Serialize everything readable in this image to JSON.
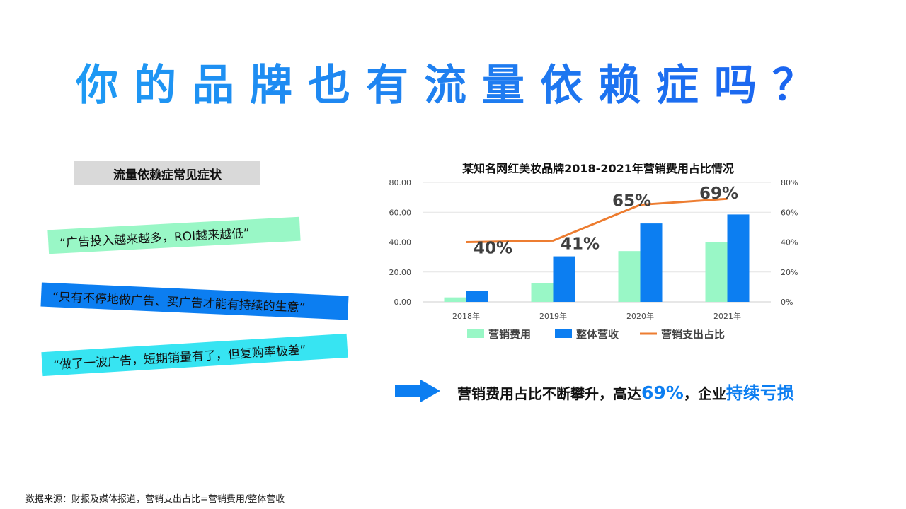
{
  "title": "你的品牌也有流量依赖症吗？",
  "symptoms": {
    "header": "流量依赖症常见症状",
    "quotes": [
      "“广告投入越来越多，ROI越来越低”",
      "“只有不停地做广告、买广告才能有持续的生意”",
      "“做了一波广告，短期销量有了，但复购率极差”"
    ]
  },
  "conclusion": {
    "prefix": "营销费用占比不断攀升，高达",
    "value": "69%",
    "middle": "，企业",
    "emphasis": "持续亏损"
  },
  "source": "数据来源：财报及媒体报道，营销支出占比=营销费用/整体营收",
  "colors": {
    "accent": "#0c7ef1",
    "marketing_cost_bar": "#99f7c6",
    "revenue_bar": "#0c7ef1",
    "ratio_line": "#ed7d31"
  },
  "chart_data": {
    "type": "bar",
    "title": "某知名网红美妆品牌2018-2021年营销费用占比情况",
    "categories": [
      "2018年",
      "2019年",
      "2020年",
      "2021年"
    ],
    "series": [
      {
        "name": "营销费用",
        "type": "bar",
        "axis": "left",
        "values": [
          3,
          12.5,
          34,
          40
        ]
      },
      {
        "name": "整体营收",
        "type": "bar",
        "axis": "left",
        "values": [
          7.5,
          30.5,
          52.5,
          58.5
        ]
      },
      {
        "name": "营销支出占比",
        "type": "line",
        "axis": "right",
        "values": [
          40,
          41,
          65,
          69
        ],
        "value_labels": [
          "40%",
          "41%",
          "65%",
          "69%"
        ]
      }
    ],
    "y_left": {
      "ticks": [
        "0.00",
        "20.00",
        "40.00",
        "60.00",
        "80.00"
      ],
      "ylim": [
        0,
        80
      ]
    },
    "y_right": {
      "ticks": [
        "0%",
        "20%",
        "40%",
        "60%",
        "80%"
      ],
      "ylim": [
        0,
        80
      ]
    },
    "grid": true,
    "legend": "bottom"
  }
}
